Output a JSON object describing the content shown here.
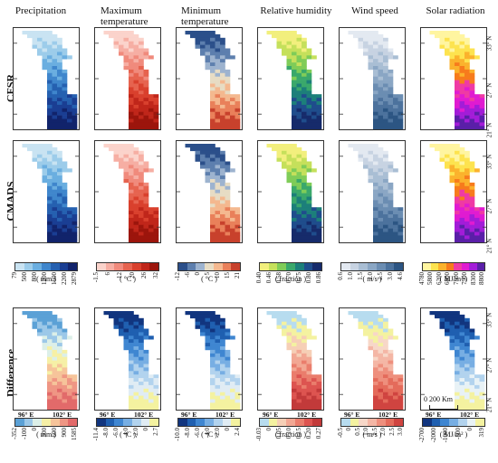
{
  "columns": [
    {
      "title": "Precipitation"
    },
    {
      "title": "Maximum temperature"
    },
    {
      "title": "Minimum temperature"
    },
    {
      "title": "Relative humidity"
    },
    {
      "title": "Wind speed"
    },
    {
      "title": "Solar radiation"
    }
  ],
  "rows": [
    {
      "label": "CFSR"
    },
    {
      "label": "CMADS"
    },
    {
      "label": "Difference"
    }
  ],
  "lat_labels": [
    "33° N",
    "27° N",
    "21° N"
  ],
  "lon_labels": [
    "96° E",
    "102° E"
  ],
  "scale_bar": {
    "label": "0   200 Km"
  },
  "colorbars": [
    {
      "unit": "( mm )",
      "ticks": [
        "79",
        "500",
        "800",
        "1200",
        "1600",
        "2200",
        "2879"
      ],
      "colors": [
        "#c9e3f2",
        "#9cccea",
        "#6aaee0",
        "#3f86cc",
        "#2560b0",
        "#1a3e93",
        "#11236b"
      ]
    },
    {
      "unit": "( °C )",
      "ticks": [
        "-1.5",
        "6",
        "12",
        "20",
        "26",
        "32"
      ],
      "colors": [
        "#fbd3cb",
        "#f6aea3",
        "#f08a7c",
        "#e6634f",
        "#d9402d",
        "#c0261a",
        "#9c150c"
      ]
    },
    {
      "unit": "( °C )",
      "ticks": [
        "-12",
        "-6",
        "0",
        "5",
        "10",
        "15",
        "21"
      ],
      "colors": [
        "#2b4f8a",
        "#5d7fae",
        "#9db3cf",
        "#e7dcc4",
        "#f4b88f",
        "#e9805a",
        "#c8412c"
      ]
    },
    {
      "unit": "( fraction )",
      "ticks": [
        "0.40",
        "0.46",
        "0.58",
        "0.70",
        "0.75",
        "0.80",
        "0.86"
      ],
      "colors": [
        "#f2ef7d",
        "#c5e05b",
        "#7fcc58",
        "#3aa86b",
        "#1c7f7a",
        "#1f4d8c",
        "#162b6b"
      ]
    },
    {
      "unit": "( m/s )",
      "ticks": [
        "0.6",
        "1.0",
        "1.5",
        "2.0",
        "2.5",
        "3.0",
        "4.6"
      ],
      "colors": [
        "#e3e9f1",
        "#c7d3e2",
        "#a9bed4",
        "#8aa6c4",
        "#6b8db2",
        "#4c729d",
        "#2c5583"
      ]
    },
    {
      "unit": "( MJ/m² )",
      "ticks": [
        "4780",
        "5800",
        "6200",
        "6800",
        "7500",
        "7900",
        "8300",
        "8800"
      ],
      "colors": [
        "#fff5a0",
        "#fde34f",
        "#fbb22c",
        "#f77b1c",
        "#ef3aa4",
        "#e01bd1",
        "#a31cd8",
        "#5a1fa8"
      ]
    },
    {
      "unit": "( mm )",
      "ticks": [
        "-352",
        "-100",
        "0",
        "300",
        "600",
        "900",
        "1585"
      ],
      "colors": [
        "#5ba1d6",
        "#9cc8e8",
        "#dcefe8",
        "#f6f0a6",
        "#f6c49a",
        "#ef9684",
        "#e26a6a"
      ]
    },
    {
      "unit": "( °C )",
      "ticks": [
        "-11.4",
        "-8.0",
        "-6.0",
        "-4.0",
        "-2.0",
        "0",
        "2.7"
      ],
      "colors": [
        "#11357f",
        "#1f5fb0",
        "#3f86d1",
        "#77aee3",
        "#b2d3ee",
        "#e0ecf4",
        "#f4f2a0"
      ]
    },
    {
      "unit": "( °C )",
      "ticks": [
        "-10.0",
        "-8.0",
        "-6.0",
        "-4.0",
        "-2.0",
        "0",
        "2.4"
      ],
      "colors": [
        "#11357f",
        "#1f5fb0",
        "#3f86d1",
        "#77aee3",
        "#b2d3ee",
        "#e0ecf4",
        "#f4f2a0"
      ]
    },
    {
      "unit": "( fraction )",
      "ticks": [
        "-0.03",
        "0",
        "0.05",
        "0.10",
        "0.15",
        "0.20",
        "0.27"
      ],
      "colors": [
        "#b7dcef",
        "#f4f2a0",
        "#f6cfb6",
        "#f2a793",
        "#ea7d6c",
        "#dd5450",
        "#c23a3a"
      ]
    },
    {
      "unit": "( m/s )",
      "ticks": [
        "-0.5",
        "0",
        "0.5",
        "1.0",
        "1.5",
        "2.0",
        "2.5",
        "3.0"
      ],
      "colors": [
        "#b7dcef",
        "#f4f2a0",
        "#f7d7c8",
        "#f4b6a5",
        "#ee8f7d",
        "#e46b5b",
        "#d04440"
      ]
    },
    {
      "unit": "( MJ/m² )",
      "ticks": [
        "-2700",
        "-2000",
        "-1000",
        "-500",
        "0",
        "319"
      ],
      "colors": [
        "#11357f",
        "#1f5fb0",
        "#3f86d1",
        "#77aee3",
        "#b2d3ee",
        "#e8f2f6",
        "#f4f2a0"
      ]
    }
  ]
}
